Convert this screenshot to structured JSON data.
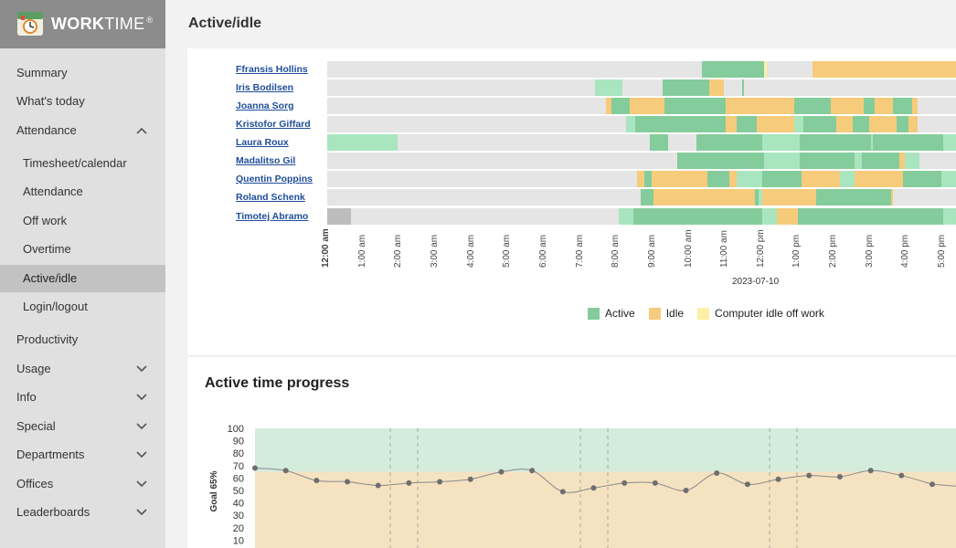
{
  "app": {
    "logo_main": "WORK",
    "logo_light": "TIME",
    "logo_mark": "®"
  },
  "sidebar": {
    "items": [
      {
        "label": "Summary",
        "level": "top",
        "icon": ""
      },
      {
        "label": "What's today",
        "level": "top",
        "icon": ""
      },
      {
        "label": "Attendance",
        "level": "top",
        "icon": "chevron-up-icon"
      },
      {
        "label": "Timesheet/calendar",
        "level": "sub",
        "icon": ""
      },
      {
        "label": "Attendance",
        "level": "sub",
        "icon": ""
      },
      {
        "label": "Off work",
        "level": "sub",
        "icon": ""
      },
      {
        "label": "Overtime",
        "level": "sub",
        "icon": ""
      },
      {
        "label": "Active/idle",
        "level": "sub",
        "icon": "",
        "active": true
      },
      {
        "label": "Login/logout",
        "level": "sub",
        "icon": ""
      },
      {
        "label": "Productivity",
        "level": "top",
        "icon": ""
      },
      {
        "label": "Usage",
        "level": "top",
        "icon": "chevron-down-icon"
      },
      {
        "label": "Info",
        "level": "top",
        "icon": "chevron-down-icon"
      },
      {
        "label": "Special",
        "level": "top",
        "icon": "chevron-down-icon"
      },
      {
        "label": "Departments",
        "level": "top",
        "icon": "chevron-down-icon"
      },
      {
        "label": "Offices",
        "level": "top",
        "icon": "chevron-down-icon"
      },
      {
        "label": "Leaderboards",
        "level": "top",
        "icon": "chevron-down-icon"
      }
    ]
  },
  "header": {
    "title": "Active/idle"
  },
  "colors": {
    "active": "#84cc9b",
    "idle": "#f6cb7b",
    "computer_idle_off_work": "#fdf0a4",
    "light_active": "#a9e5bf",
    "no_data": "#bdbdbd",
    "link": "#1f4e9a",
    "goal_above": "#d3ecdc",
    "goal_below": "#f5e2c0"
  },
  "chart_data": [
    {
      "type": "timeline",
      "xlabel": "2023-07-10",
      "x_ticks": [
        "12:00 am",
        "1:00 am",
        "2:00 am",
        "3:00 am",
        "4:00 am",
        "5:00 am",
        "6:00 am",
        "7:00 am",
        "8:00 am",
        "9:00 am",
        "10:00 am",
        "11:00 am",
        "12:00 pm",
        "1:00 pm",
        "2:00 pm",
        "3:00 pm",
        "4:00 pm",
        "5:00 pm"
      ],
      "legend": [
        {
          "name": "Active",
          "color_key": "active"
        },
        {
          "name": "Idle",
          "color_key": "idle"
        },
        {
          "name": "Computer idle off work",
          "color_key": "computer_idle_off_work"
        }
      ],
      "rows": [
        {
          "name": "Ffransis Hollins",
          "segments": [
            [
              10.35,
              12.05,
              "active"
            ],
            [
              12.05,
              12.12,
              "computer_idle_off_work"
            ],
            [
              13.4,
              17.4,
              "idle"
            ]
          ]
        },
        {
          "name": "Iris Bodilsen",
          "segments": [
            [
              7.4,
              8.15,
              "light_active"
            ],
            [
              9.25,
              10.55,
              "active"
            ],
            [
              10.55,
              10.95,
              "idle"
            ],
            [
              11.45,
              11.5,
              "active"
            ]
          ]
        },
        {
          "name": "Joanna Sorg",
          "segments": [
            [
              7.7,
              7.85,
              "idle"
            ],
            [
              7.85,
              8.35,
              "active"
            ],
            [
              8.35,
              9.3,
              "idle"
            ],
            [
              9.3,
              11.0,
              "active"
            ],
            [
              11.0,
              12.9,
              "idle"
            ],
            [
              12.9,
              13.9,
              "active"
            ],
            [
              13.9,
              14.8,
              "idle"
            ],
            [
              14.8,
              15.1,
              "active"
            ],
            [
              15.1,
              15.6,
              "idle"
            ],
            [
              15.6,
              16.15,
              "active"
            ],
            [
              16.15,
              16.3,
              "idle"
            ]
          ]
        },
        {
          "name": "Kristofor Giffard",
          "segments": [
            [
              8.25,
              8.5,
              "light_active"
            ],
            [
              8.5,
              11.0,
              "active"
            ],
            [
              11.0,
              11.3,
              "idle"
            ],
            [
              11.3,
              11.85,
              "active"
            ],
            [
              11.85,
              12.9,
              "idle"
            ],
            [
              12.9,
              13.15,
              "light_active"
            ],
            [
              13.15,
              14.05,
              "active"
            ],
            [
              14.05,
              14.5,
              "idle"
            ],
            [
              14.5,
              14.95,
              "active"
            ],
            [
              14.95,
              15.7,
              "idle"
            ],
            [
              15.7,
              16.05,
              "active"
            ],
            [
              16.05,
              16.3,
              "idle"
            ]
          ]
        },
        {
          "name": "Laura Roux",
          "segments": [
            [
              0.0,
              1.95,
              "light_active"
            ],
            [
              8.9,
              9.4,
              "active"
            ],
            [
              10.2,
              11.7,
              "active"
            ],
            [
              11.7,
              12.0,
              "active"
            ],
            [
              12.0,
              13.05,
              "light_active"
            ],
            [
              13.05,
              15.0,
              "active"
            ],
            [
              15.0,
              15.05,
              "light_active"
            ],
            [
              15.05,
              17.0,
              "active"
            ],
            [
              17.0,
              17.4,
              "light_active"
            ]
          ]
        },
        {
          "name": "Madalitso Gil",
          "segments": [
            [
              9.65,
              12.05,
              "active"
            ],
            [
              12.05,
              13.05,
              "light_active"
            ],
            [
              13.05,
              13.25,
              "active"
            ],
            [
              13.25,
              14.55,
              "active"
            ],
            [
              14.55,
              14.75,
              "light_active"
            ],
            [
              14.75,
              15.8,
              "active"
            ],
            [
              15.8,
              15.95,
              "idle"
            ],
            [
              15.95,
              16.35,
              "light_active"
            ]
          ]
        },
        {
          "name": "Quentin Poppins",
          "segments": [
            [
              8.55,
              8.75,
              "idle"
            ],
            [
              8.75,
              8.95,
              "active"
            ],
            [
              8.95,
              10.5,
              "idle"
            ],
            [
              10.5,
              11.1,
              "active"
            ],
            [
              11.1,
              11.3,
              "idle"
            ],
            [
              11.3,
              12.0,
              "light_active"
            ],
            [
              12.0,
              13.1,
              "active"
            ],
            [
              13.1,
              14.15,
              "idle"
            ],
            [
              14.15,
              14.55,
              "light_active"
            ],
            [
              14.55,
              15.9,
              "idle"
            ],
            [
              15.9,
              16.95,
              "active"
            ],
            [
              16.95,
              17.4,
              "light_active"
            ]
          ]
        },
        {
          "name": "Roland Schenk",
          "segments": [
            [
              8.65,
              9.0,
              "active"
            ],
            [
              9.0,
              11.8,
              "idle"
            ],
            [
              11.8,
              11.9,
              "active"
            ],
            [
              11.9,
              12.0,
              "light_active"
            ],
            [
              12.0,
              13.5,
              "idle"
            ],
            [
              13.5,
              15.55,
              "active"
            ],
            [
              15.55,
              15.6,
              "idle"
            ]
          ]
        },
        {
          "name": "Timotej Abramo",
          "segments": [
            [
              0.0,
              0.65,
              "no_data"
            ],
            [
              8.05,
              8.45,
              "light_active"
            ],
            [
              8.45,
              12.0,
              "active"
            ],
            [
              12.0,
              12.4,
              "light_active"
            ],
            [
              12.4,
              13.0,
              "idle"
            ],
            [
              13.0,
              17.0,
              "active"
            ],
            [
              17.0,
              17.4,
              "light_active"
            ]
          ]
        }
      ]
    },
    {
      "type": "line",
      "title": "Active time progress",
      "ylabel": "Goal 65%",
      "ylim": [
        0,
        100
      ],
      "y_ticks": [
        10,
        20,
        30,
        40,
        50,
        60,
        70,
        80,
        90,
        100
      ],
      "goal": 65,
      "values": [
        68,
        66,
        58,
        57,
        54,
        56,
        57,
        59,
        65,
        66,
        49,
        52,
        56,
        56,
        50,
        64,
        55,
        59,
        62,
        61,
        66,
        62,
        55
      ]
    }
  ]
}
